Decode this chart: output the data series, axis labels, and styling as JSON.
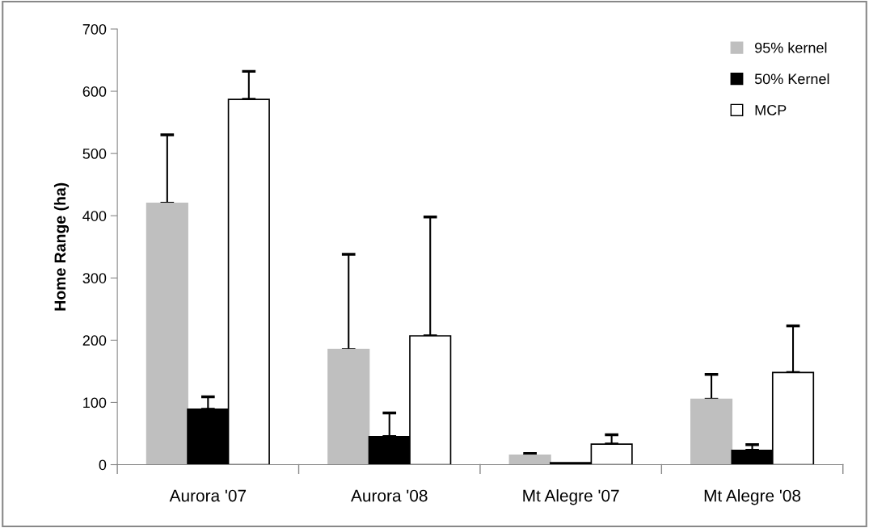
{
  "chart_data": {
    "type": "bar",
    "ylabel": "Home Range (ha)",
    "categories": [
      "Aurora '07",
      "Aurora '08",
      "Mt Alegre '07",
      "Mt Alegre '08"
    ],
    "series": [
      {
        "name": "95% kernel",
        "color": "#bfbfbf",
        "values": [
          420,
          185,
          15,
          105
        ],
        "errors": [
          [
            420,
            530
          ],
          [
            185,
            338
          ],
          [
            15,
            18
          ],
          [
            105,
            145
          ]
        ]
      },
      {
        "name": "50% Kernel",
        "color": "#000000",
        "values": [
          89,
          45,
          3,
          23
        ],
        "errors": [
          [
            89,
            109
          ],
          [
            45,
            83
          ],
          null,
          [
            23,
            32
          ]
        ]
      },
      {
        "name": "MCP",
        "color": "#ffffff",
        "values": [
          587,
          207,
          33,
          148
        ],
        "errors": [
          [
            587,
            632
          ],
          [
            207,
            398
          ],
          [
            33,
            48
          ],
          [
            148,
            223
          ]
        ]
      }
    ],
    "ylim": [
      0,
      700
    ],
    "yticks": [
      0,
      100,
      200,
      300,
      400,
      500,
      600,
      700
    ],
    "legend": "top right"
  }
}
